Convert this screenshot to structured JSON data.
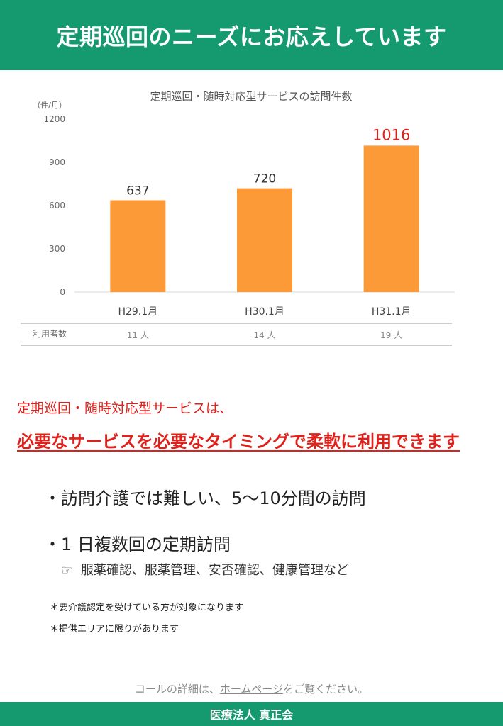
{
  "header": {
    "title": "定期巡回のニーズにお応えしています"
  },
  "chart_data": {
    "type": "bar",
    "title": "定期巡回・随時対応型サービスの訪問件数",
    "ylabel": "（件/月）",
    "ylim": [
      0,
      1200
    ],
    "yticks": [
      "0",
      "300",
      "600",
      "900",
      "1200"
    ],
    "categories": [
      "H29.1月",
      "H30.1月",
      "H31.1月"
    ],
    "values": [
      637,
      720,
      1016
    ],
    "value_labels": [
      "637",
      "720",
      "1016"
    ],
    "highlight_index": 2,
    "colors": {
      "bar": "#fb9a37",
      "highlight_label": "#e0201a",
      "label": "#333333"
    },
    "table": {
      "row_label": "利用者数",
      "values": [
        "11 人",
        "14 人",
        "19 人"
      ]
    }
  },
  "intro": "定期巡回・随時対応型サービスは、",
  "headline": "必要なサービスを必要なタイミングで柔軟に利用できます",
  "bullets": [
    {
      "dot": "・",
      "text": "訪問介護では難しい、5～10分間の訪問"
    },
    {
      "dot": "・",
      "text": "1 日複数回の定期訪問"
    }
  ],
  "subitem": {
    "icon": "pointing-hand-icon",
    "glyph": "☞",
    "text": "服薬確認、服薬管理、安否確認、健康管理など"
  },
  "notes": [
    "＊要介護認定を受けている方が対象になります",
    "＊提供エリアに限りがあります"
  ],
  "contact": {
    "prefix": "コールの詳細は、",
    "link": "ホームページ",
    "suffix": "をご覧ください。"
  },
  "footer": {
    "name": "医療法人 真正会"
  },
  "colors": {
    "green": "#159a70",
    "red": "#e0201a"
  }
}
